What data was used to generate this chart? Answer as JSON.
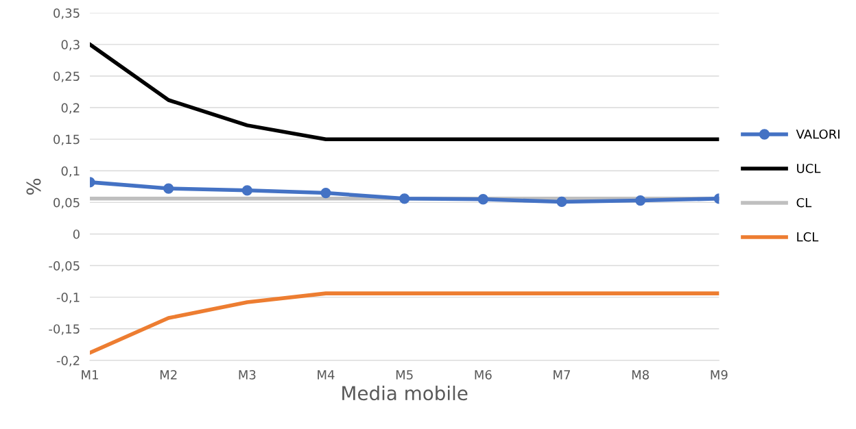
{
  "chart_data": {
    "type": "line",
    "xlabel": "Media mobile",
    "ylabel": "%",
    "categories": [
      "M1",
      "M2",
      "M3",
      "M4",
      "M5",
      "M6",
      "M7",
      "M8",
      "M9"
    ],
    "series": [
      {
        "name": "VALORI",
        "color": "#4472c4",
        "marker": "circle",
        "values": [
          0.082,
          0.072,
          0.069,
          0.065,
          0.056,
          0.055,
          0.051,
          0.053,
          0.056
        ]
      },
      {
        "name": "UCL",
        "color": "#000000",
        "marker": "none",
        "values": [
          0.3,
          0.212,
          0.172,
          0.15,
          0.15,
          0.15,
          0.15,
          0.15,
          0.15
        ]
      },
      {
        "name": "CL",
        "color": "#bfbfbf",
        "marker": "none",
        "values": [
          0.056,
          0.056,
          0.056,
          0.056,
          0.056,
          0.056,
          0.056,
          0.056,
          0.056
        ]
      },
      {
        "name": "LCL",
        "color": "#ed7d31",
        "marker": "none",
        "values": [
          -0.188,
          -0.133,
          -0.108,
          -0.094,
          -0.094,
          -0.094,
          -0.094,
          -0.094,
          -0.094
        ]
      }
    ],
    "ylim": [
      -0.2,
      0.35
    ],
    "yticks": [
      {
        "value": -0.2,
        "label": "-0,2"
      },
      {
        "value": -0.15,
        "label": "-0,15"
      },
      {
        "value": -0.1,
        "label": "-0,1"
      },
      {
        "value": -0.05,
        "label": "-0,05"
      },
      {
        "value": 0,
        "label": "0"
      },
      {
        "value": 0.05,
        "label": "0,05"
      },
      {
        "value": 0.1,
        "label": "0,1"
      },
      {
        "value": 0.15,
        "label": "0,15"
      },
      {
        "value": 0.2,
        "label": "0,2"
      },
      {
        "value": 0.25,
        "label": "0,25"
      },
      {
        "value": 0.3,
        "label": "0,3"
      },
      {
        "value": 0.35,
        "label": "0,35"
      }
    ],
    "grid": "y",
    "legend": "right",
    "line_style": "solid"
  }
}
